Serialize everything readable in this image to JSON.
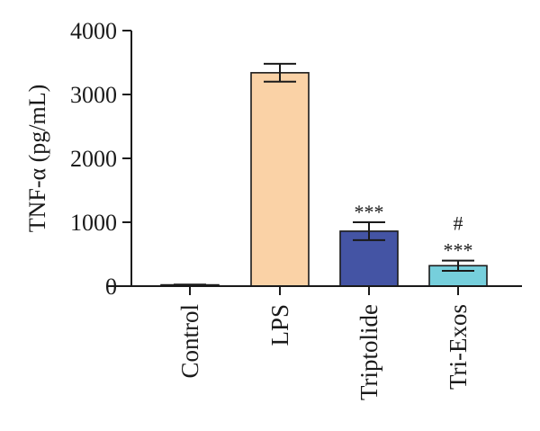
{
  "chart_data": {
    "type": "bar",
    "title": "",
    "xlabel": "",
    "ylabel": "TNF-α (pg/mL)",
    "ylim": [
      0,
      4000
    ],
    "yticks": [
      0,
      1000,
      2000,
      3000,
      4000
    ],
    "ytick_labels": [
      "0",
      "1000",
      "2000",
      "3000",
      "4000"
    ],
    "categories": [
      "Control",
      "LPS",
      "Triptolide",
      "Tri-Exos"
    ],
    "values": [
      20,
      3340,
      860,
      320
    ],
    "errors": [
      5,
      140,
      140,
      80
    ],
    "bar_colors": [
      "#ffffff",
      "#fad2a6",
      "#4454a4",
      "#76cfdc"
    ],
    "annotations": [
      {
        "category": "Triptolide",
        "lines": [
          "***"
        ]
      },
      {
        "category": "Tri-Exos",
        "lines": [
          "#",
          "***"
        ]
      }
    ],
    "grid": false
  }
}
